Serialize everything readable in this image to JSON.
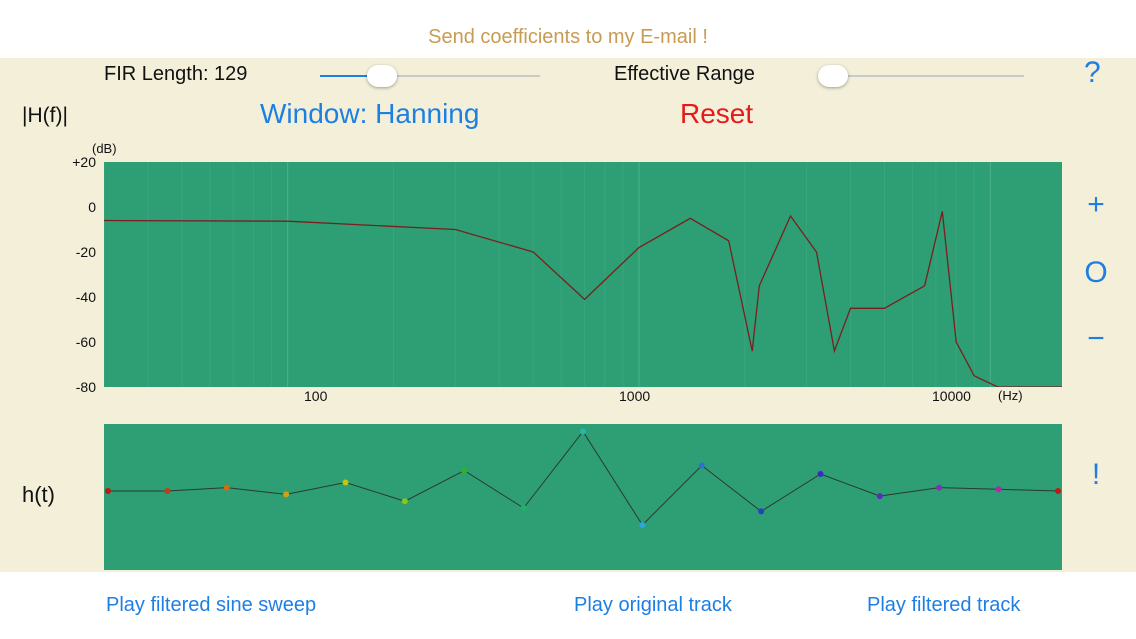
{
  "top_link": "Send coefficients to my E-mail !",
  "controls": {
    "fir_label": "FIR Length: 129",
    "fir_slider_fraction": 0.28,
    "effective_label": "Effective Range",
    "effective_slider_fraction": 0.0,
    "help_label": "?"
  },
  "frequency_response": {
    "label": "|H(f)|",
    "window_button": "Window: Hanning",
    "reset_button": "Reset",
    "y_unit": "(dB)",
    "x_unit": "(Hz)",
    "y_ticks": [
      "+20",
      "0",
      "-20",
      "-40",
      "-60",
      "-80"
    ],
    "x_ticks": [
      "100",
      "1000",
      "10000"
    ]
  },
  "zoom": {
    "plus": "+",
    "reset": "O",
    "minus": "−"
  },
  "impulse_response": {
    "label": "h(t)",
    "marker": "!"
  },
  "chart_data": [
    {
      "type": "line",
      "xlabel": "(Hz)",
      "ylabel": "(dB)",
      "x_scale": "log",
      "xlim": [
        30,
        16000
      ],
      "ylim": [
        -80,
        20
      ],
      "grid": true,
      "x": [
        30,
        100,
        300,
        500,
        700,
        1000,
        1400,
        1800,
        2100,
        2200,
        2700,
        3200,
        3600,
        4000,
        5000,
        6500,
        7300,
        8000,
        9000,
        10500,
        16000
      ],
      "values": [
        -6,
        -6.3,
        -10,
        -20,
        -41,
        -18,
        -5,
        -15,
        -64,
        -35,
        -4,
        -20,
        -64,
        -45,
        -45,
        -35,
        -2,
        -60,
        -75,
        -80,
        -80
      ]
    },
    {
      "type": "scatter",
      "xlabel": "",
      "ylabel": "",
      "x": [
        0,
        8,
        16,
        24,
        32,
        40,
        48,
        56,
        64,
        72,
        80,
        88,
        96,
        104,
        112,
        120,
        128
      ],
      "values": [
        0,
        0,
        0.02,
        -0.02,
        0.05,
        -0.06,
        0.12,
        -0.1,
        0.35,
        -0.2,
        0.15,
        -0.12,
        0.1,
        -0.03,
        0.02,
        0.01,
        0
      ]
    }
  ]
}
